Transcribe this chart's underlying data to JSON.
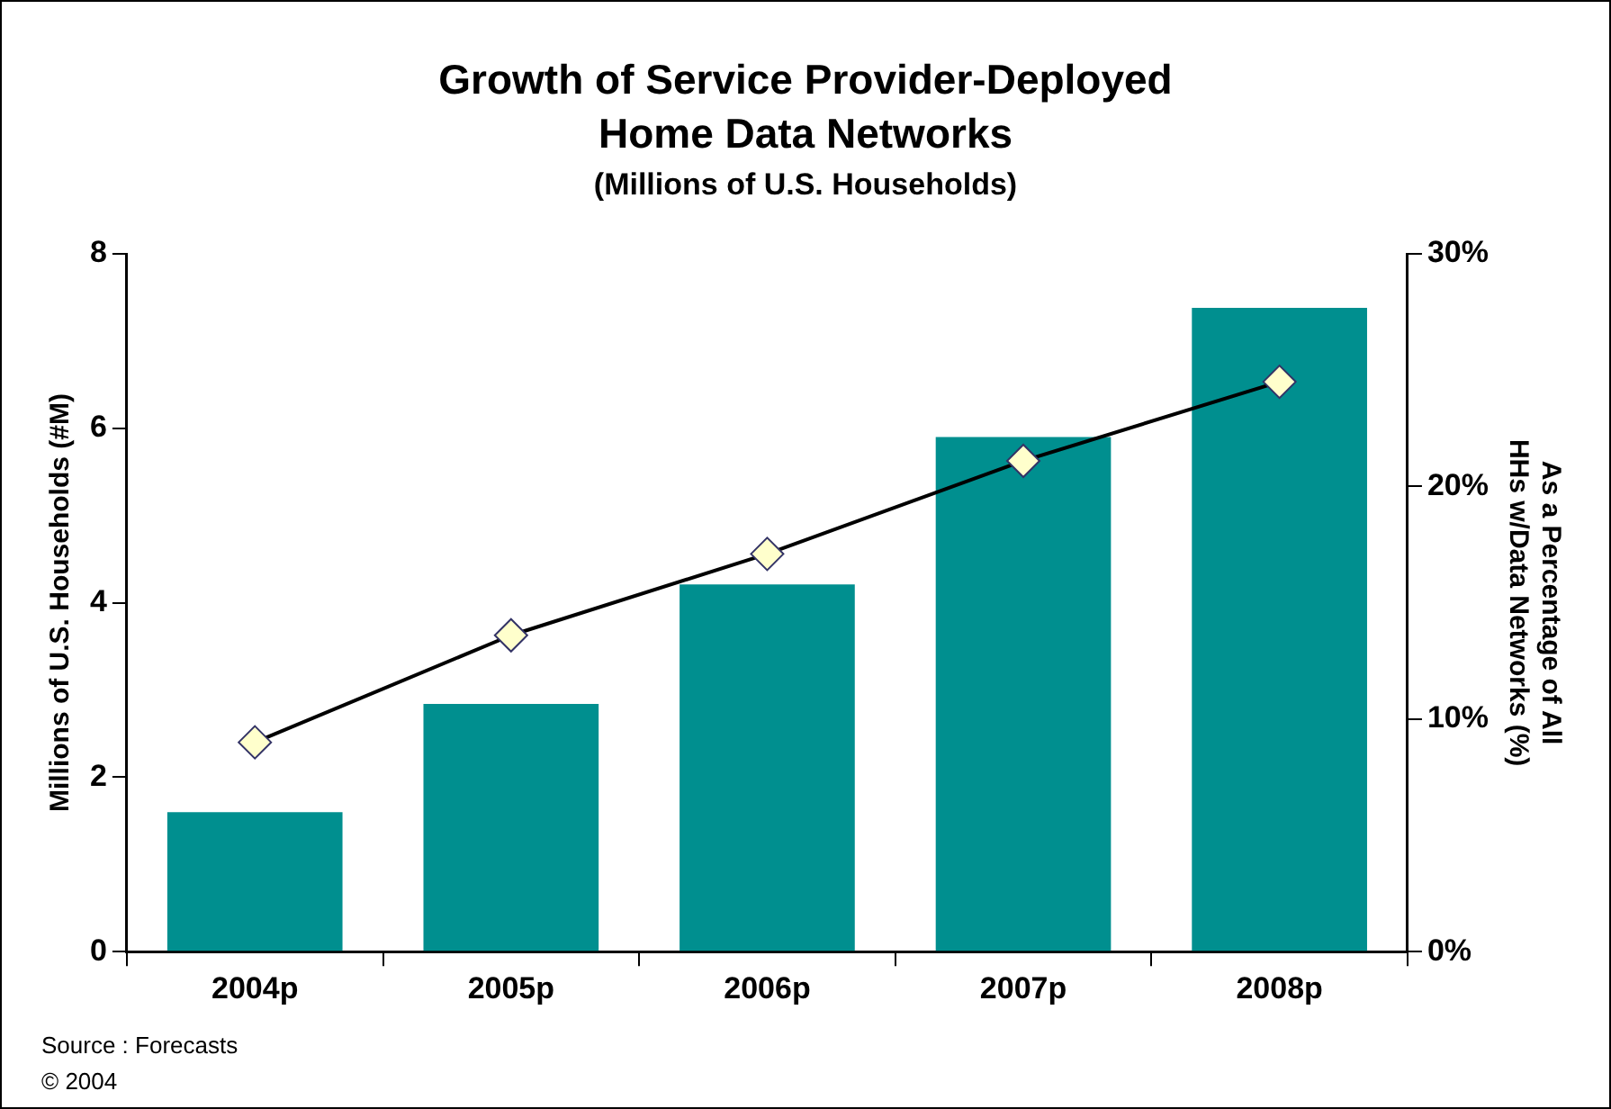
{
  "chart_data": {
    "type": "bar",
    "title": "Growth of Service Provider-Deployed Home Data Networks",
    "subtitle": "(Millions of U.S. Households)",
    "ylabel": "Millions of U.S. Households (#M)",
    "y2label": "As a Percentage of All HHs w/Data Networks (%)",
    "categories": [
      "2004p",
      "2005p",
      "2006p",
      "2007p",
      "2008p"
    ],
    "series": [
      {
        "color": "#008f8f",
        "values": [
          1.6,
          2.84,
          4.21,
          5.9,
          7.38
        ]
      },
      {
        "type": "line",
        "axis": "y2",
        "color": "#000000",
        "marker": "diamond",
        "values": [
          9.0,
          13.6,
          17.1,
          21.1,
          24.5
        ]
      }
    ],
    "ylim": [
      0,
      8
    ],
    "yticks": [
      0,
      2,
      4,
      6,
      8
    ],
    "y2lim": [
      0,
      30
    ],
    "y2ticks": [
      {
        "value": 0,
        "label": "0%"
      },
      {
        "value": 10,
        "label": "10%"
      },
      {
        "value": 20,
        "label": "20%"
      },
      {
        "value": 30,
        "label": "30%"
      }
    ],
    "grid": false,
    "legend": false,
    "annotations": [
      "Source : Forecasts",
      "© 2004"
    ]
  }
}
